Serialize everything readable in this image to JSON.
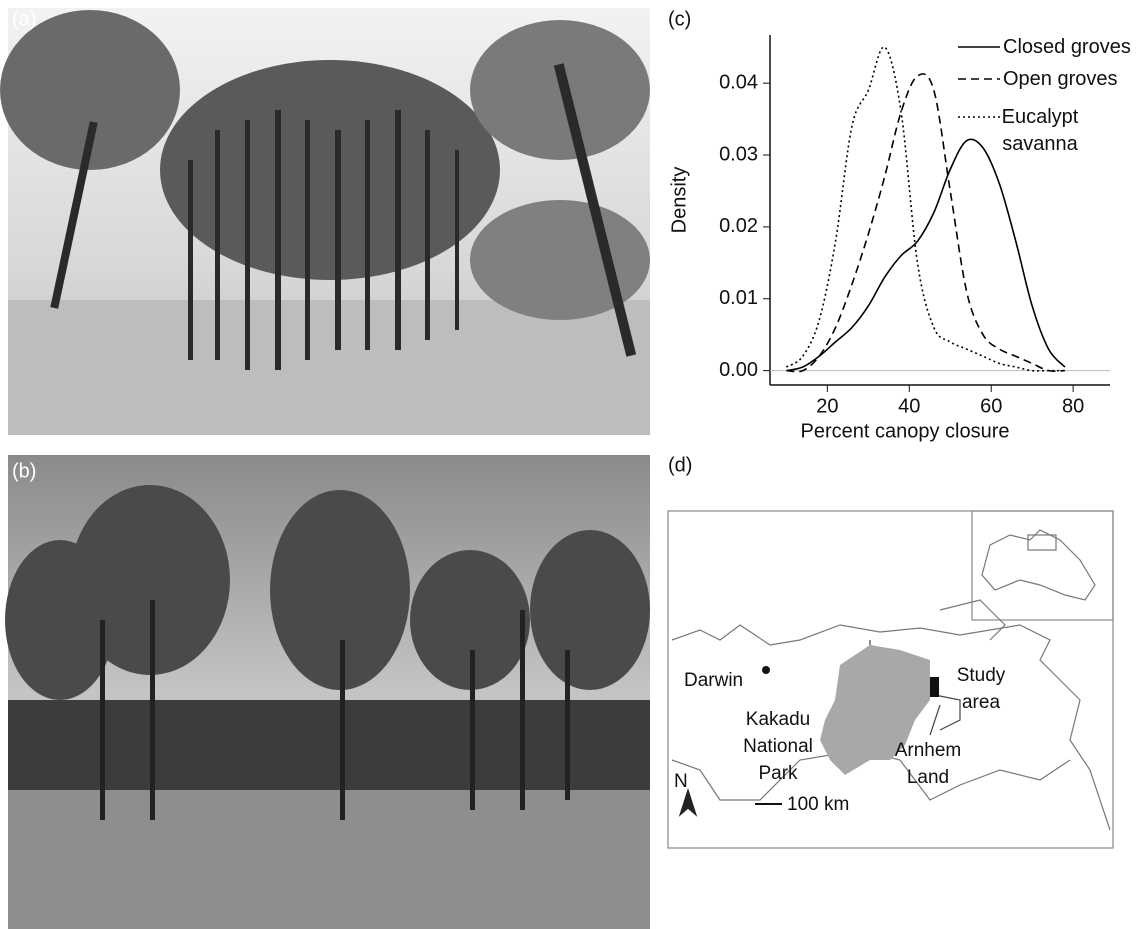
{
  "panels": {
    "a": "(a)",
    "b": "(b)",
    "d": "(d)"
  },
  "chart_data": {
    "type": "line",
    "label": "(c)",
    "x_label": "Percent canopy closure",
    "y_label": "Density",
    "x": [
      10,
      14,
      18,
      22,
      26,
      30,
      34,
      38,
      42,
      46,
      50,
      54,
      58,
      62,
      66,
      70,
      74,
      78
    ],
    "series": [
      {
        "name": "Closed groves",
        "color": "#000000",
        "dash": "solid",
        "values": [
          0,
          0.0005,
          0.002,
          0.004,
          0.006,
          0.009,
          0.013,
          0.016,
          0.018,
          0.022,
          0.028,
          0.032,
          0.031,
          0.026,
          0.018,
          0.009,
          0.003,
          0.0005
        ]
      },
      {
        "name": "Open groves",
        "color": "#000000",
        "dash": "dashed",
        "values": [
          0,
          0,
          0.002,
          0.006,
          0.012,
          0.019,
          0.027,
          0.036,
          0.041,
          0.039,
          0.025,
          0.011,
          0.005,
          0.003,
          0.002,
          0.001,
          0,
          0
        ]
      },
      {
        "name": "Eucalypt savanna",
        "color": "#000000",
        "dash": "dotted",
        "values": [
          0.0005,
          0.002,
          0.007,
          0.018,
          0.034,
          0.039,
          0.045,
          0.036,
          0.015,
          0.006,
          0.004,
          0.003,
          0.002,
          0.001,
          0.0005,
          0,
          0,
          0
        ]
      }
    ],
    "xlim": [
      6,
      89
    ],
    "ylim": [
      -0.002,
      0.0467
    ],
    "xticks": [
      20,
      40,
      60,
      80
    ],
    "yticks": [
      {
        "value": 0,
        "label": "0.00"
      },
      0.01,
      0.02,
      0.03,
      0.04
    ],
    "legend": "upper right"
  },
  "map": {
    "darwin": "Darwin",
    "study_area": "Study area",
    "kakadu": "Kakadu National Park",
    "arnhem": "Arnhem Land",
    "north": "N",
    "scale": "100 km"
  }
}
